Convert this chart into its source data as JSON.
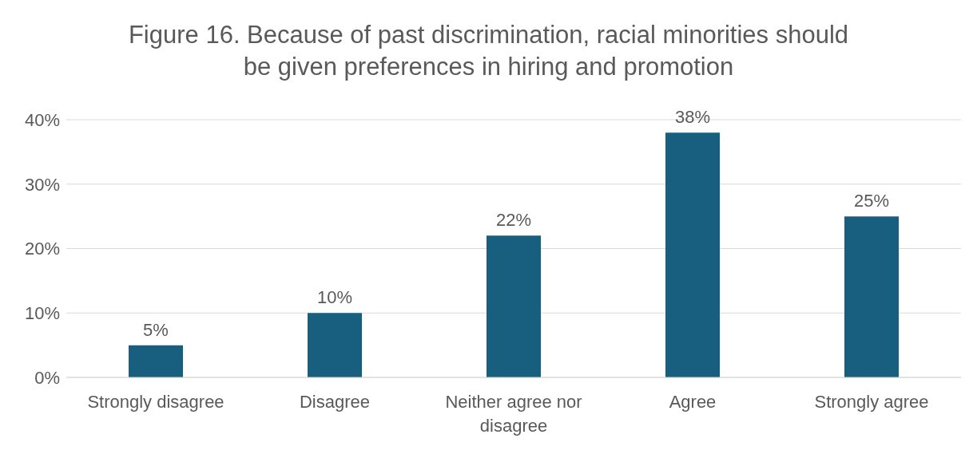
{
  "chart_data": {
    "type": "bar",
    "title": "Figure 16. Because of past discrimination, racial minorities should be given preferences in hiring and promotion",
    "categories": [
      "Strongly disagree",
      "Disagree",
      "Neither agree nor disagree",
      "Agree",
      "Strongly agree"
    ],
    "values": [
      5,
      10,
      22,
      38,
      25
    ],
    "value_labels": [
      "5%",
      "10%",
      "22%",
      "38%",
      "25%"
    ],
    "color": "#175e7f",
    "ylim": [
      0,
      40
    ],
    "yticks": [
      {
        "value": 0,
        "label": "0%"
      },
      {
        "value": 10,
        "label": "10%"
      },
      {
        "value": 20,
        "label": "20%"
      },
      {
        "value": 30,
        "label": "30%"
      },
      {
        "value": 40,
        "label": "40%"
      }
    ],
    "grid": "y"
  }
}
